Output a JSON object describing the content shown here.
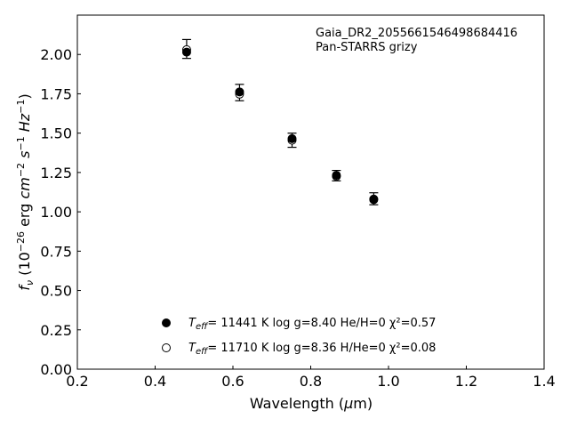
{
  "chart_data": {
    "type": "scatter",
    "annotation": [
      "Gaia_DR2_2055661546498684416",
      "Pan-STARRS grizy"
    ],
    "xlabel": "Wavelength (μm)",
    "ylabel": "f_ν (10^-26 erg cm^-2 s^-1 Hz^-1)",
    "xlim": [
      0.2,
      1.4
    ],
    "ylim": [
      0.0,
      2.25
    ],
    "xticks": [
      "0.2",
      "0.4",
      "0.6",
      "0.8",
      "1.0",
      "1.2",
      "1.4"
    ],
    "yticks": [
      "0.00",
      "0.25",
      "0.50",
      "0.75",
      "1.00",
      "1.25",
      "1.50",
      "1.75",
      "2.00"
    ],
    "grid": false,
    "legend_position": "lower-left",
    "observed": {
      "x": [
        0.481,
        0.617,
        0.752,
        0.866,
        0.962
      ],
      "y": [
        2.035,
        1.758,
        1.455,
        1.23,
        1.083
      ],
      "err": [
        0.06,
        0.052,
        0.045,
        0.033,
        0.038
      ]
    },
    "series": [
      {
        "legend_text": "= 11441 K  log g=8.40  He/H=0  χ²=0.57",
        "marker": "filled",
        "x": [
          0.481,
          0.617,
          0.752,
          0.866,
          0.962
        ],
        "y": [
          2.015,
          1.762,
          1.465,
          1.232,
          1.077
        ]
      },
      {
        "legend_text": "= 11710 K  log g=8.36  H/He=0  χ²=0.08",
        "marker": "open",
        "x": [
          0.481,
          0.617,
          0.752,
          0.866,
          0.962
        ],
        "y": [
          2.03,
          1.748,
          1.455,
          1.226,
          1.081
        ]
      }
    ],
    "colors": {
      "marker": "#000000",
      "background": "#ffffff"
    }
  }
}
